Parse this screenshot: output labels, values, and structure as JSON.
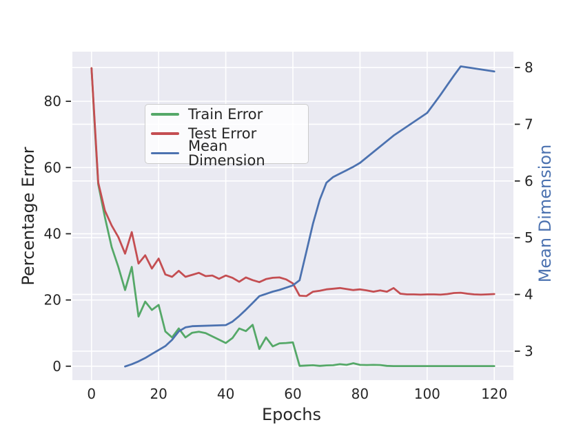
{
  "colors": {
    "figure_bg": "#ffffff",
    "plot_bg": "#eaeaf2",
    "grid": "#ffffff",
    "tick_text": "#262626",
    "train": "#55a868",
    "test": "#c44e52",
    "dimension": "#4c72b0"
  },
  "chart_data": {
    "type": "line",
    "title": "",
    "xlabel": "Epochs",
    "ylabel_left": "Percentage Error",
    "ylabel_right": "Mean Dimension",
    "grid": true,
    "legend_position": "upper left inside",
    "xlim": [
      -5.7,
      125.7
    ],
    "ylim_left": [
      -4.2,
      95.0
    ],
    "ylim_right": [
      2.49,
      8.28
    ],
    "x_ticks": [
      0,
      20,
      40,
      60,
      80,
      100,
      120
    ],
    "y_ticks_left": [
      0,
      20,
      40,
      60,
      80
    ],
    "y_ticks_right": [
      3,
      4,
      5,
      6,
      7,
      8
    ],
    "series": [
      {
        "name": "Train Error",
        "axis": "left",
        "color": "#55a868",
        "x": [
          0,
          1,
          2,
          4,
          6,
          8,
          10,
          12,
          14,
          16,
          18,
          20,
          22,
          24,
          26,
          28,
          30,
          32,
          34,
          36,
          38,
          40,
          42,
          44,
          46,
          48,
          50,
          52,
          54,
          56,
          58,
          60,
          62,
          64,
          66,
          68,
          70,
          72,
          74,
          76,
          78,
          80,
          82,
          84,
          86,
          88,
          90,
          92,
          94,
          96,
          98,
          100,
          102,
          104,
          106,
          108,
          110,
          112,
          114,
          116,
          118,
          120
        ],
        "y": [
          90,
          72,
          55,
          45,
          36,
          30,
          23,
          30,
          15,
          19.5,
          17,
          18.5,
          10.5,
          8.7,
          11.4,
          8.7,
          10.1,
          10.4,
          10,
          9,
          8,
          7,
          8.5,
          11.4,
          10.6,
          12.5,
          5.2,
          8.7,
          6,
          6.9,
          7,
          7.2,
          0.1,
          0.2,
          0.3,
          0.1,
          0.25,
          0.3,
          0.6,
          0.4,
          0.9,
          0.4,
          0.35,
          0.4,
          0.35,
          0.1,
          0.05,
          0.05,
          0.05,
          0.05,
          0.05,
          0.05,
          0.05,
          0.05,
          0.05,
          0.05,
          0.05,
          0.05,
          0.05,
          0.05,
          0.05,
          0.05
        ]
      },
      {
        "name": "Test Error",
        "axis": "left",
        "color": "#c44e52",
        "x": [
          0,
          1,
          2,
          4,
          6,
          8,
          10,
          12,
          14,
          16,
          18,
          20,
          22,
          24,
          26,
          28,
          30,
          32,
          34,
          36,
          38,
          40,
          42,
          44,
          46,
          48,
          50,
          52,
          54,
          56,
          58,
          60,
          62,
          64,
          66,
          68,
          70,
          72,
          74,
          76,
          78,
          80,
          82,
          84,
          86,
          88,
          90,
          92,
          94,
          96,
          98,
          100,
          102,
          104,
          106,
          108,
          110,
          112,
          114,
          116,
          118,
          120
        ],
        "y": [
          90,
          73,
          55.5,
          47,
          42.5,
          39,
          34,
          40.5,
          31,
          33.5,
          29.5,
          32.5,
          27.7,
          27,
          28.8,
          27,
          27.6,
          28.2,
          27.2,
          27.4,
          26.4,
          27.4,
          26.7,
          25.5,
          26.8,
          26,
          25.4,
          26.3,
          26.7,
          26.8,
          26.2,
          25,
          21.3,
          21.2,
          22.5,
          22.8,
          23.2,
          23.4,
          23.6,
          23.3,
          23,
          23.2,
          22.9,
          22.5,
          22.9,
          22.5,
          23.6,
          21.9,
          21.7,
          21.7,
          21.6,
          21.7,
          21.7,
          21.6,
          21.8,
          22.1,
          22.2,
          21.9,
          21.7,
          21.6,
          21.7,
          21.8
        ]
      },
      {
        "name": "Mean Dimension",
        "axis": "right",
        "color": "#4c72b0",
        "x": [
          10,
          12,
          14,
          16,
          18,
          20,
          22,
          24,
          26,
          28,
          30,
          40,
          42,
          44,
          46,
          48,
          50,
          52,
          54,
          56,
          58,
          60,
          62,
          64,
          66,
          68,
          70,
          72,
          74,
          76,
          78,
          80,
          90,
          100,
          102,
          104,
          106,
          108,
          110,
          120
        ],
        "y": [
          2.73,
          2.77,
          2.82,
          2.88,
          2.95,
          3.02,
          3.09,
          3.2,
          3.35,
          3.42,
          3.44,
          3.46,
          3.52,
          3.62,
          3.73,
          3.85,
          3.97,
          4.01,
          4.05,
          4.08,
          4.12,
          4.16,
          4.25,
          4.75,
          5.25,
          5.67,
          5.97,
          6.07,
          6.13,
          6.19,
          6.25,
          6.32,
          6.8,
          7.2,
          7.36,
          7.52,
          7.69,
          7.86,
          8.02,
          7.93
        ]
      }
    ]
  }
}
